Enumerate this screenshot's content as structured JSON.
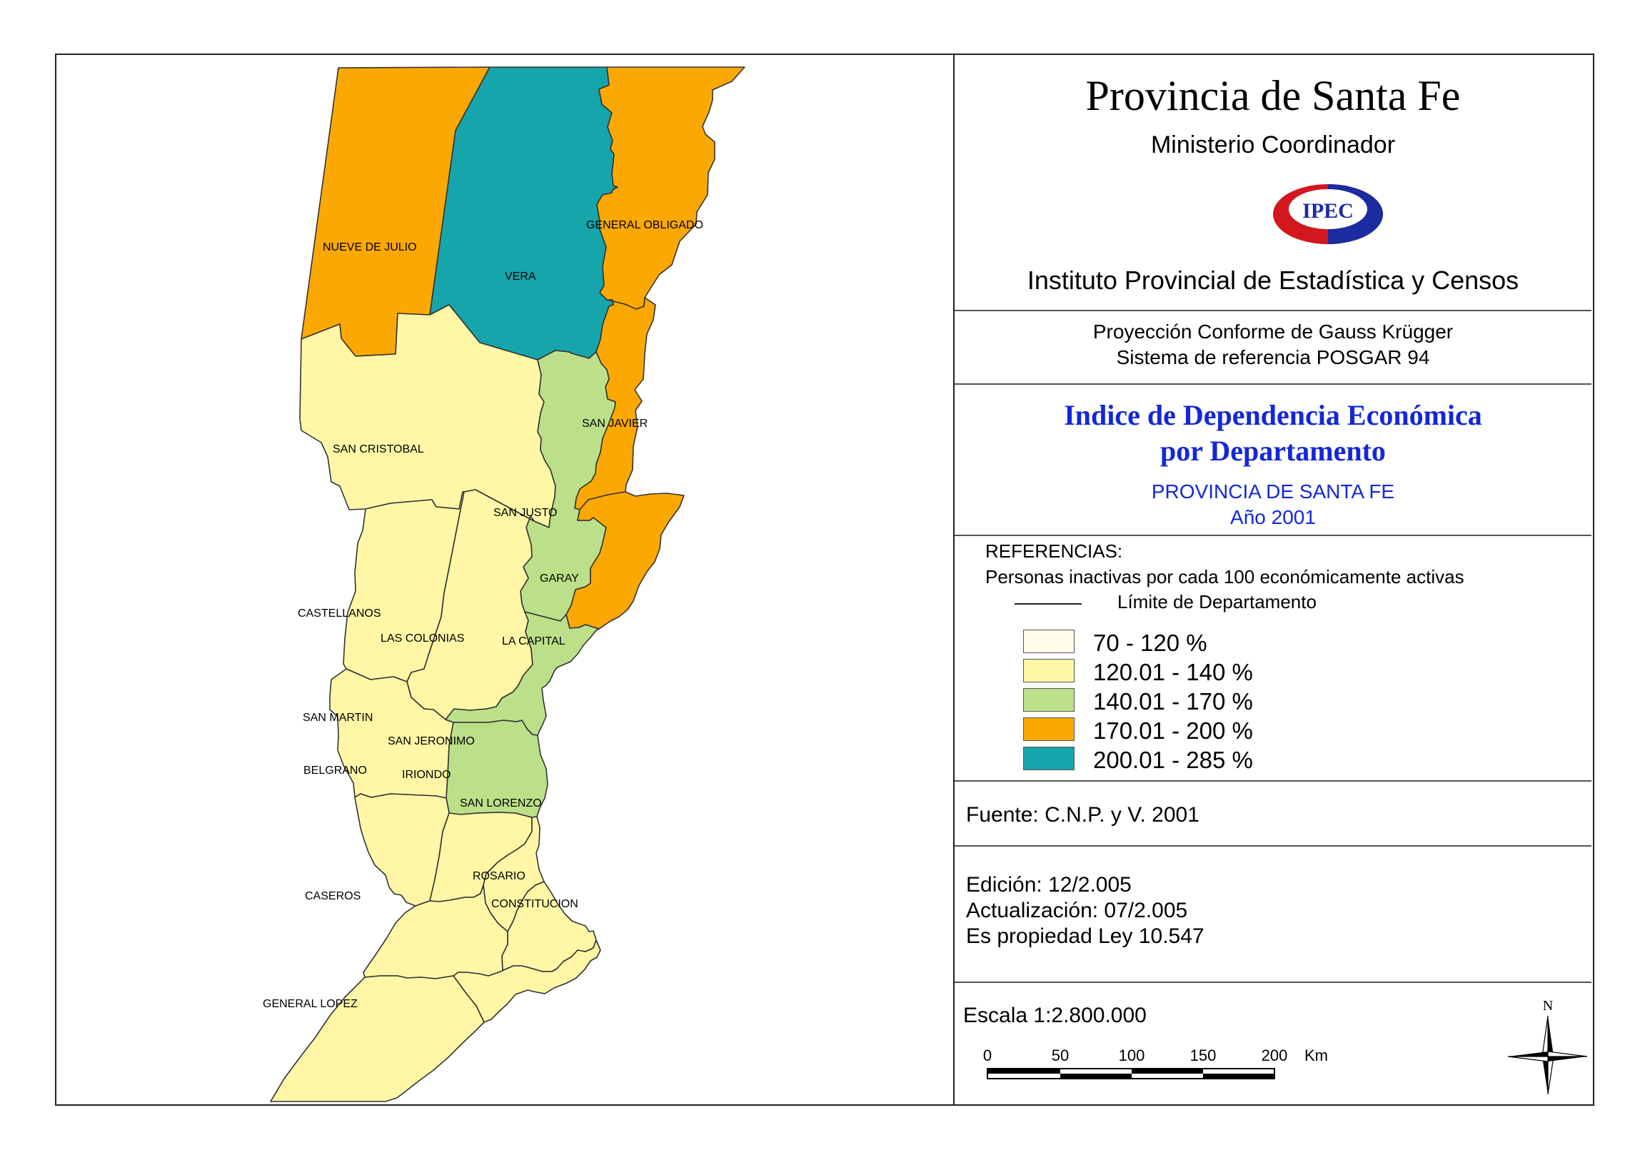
{
  "header": {
    "title": "Provincia de Santa Fe",
    "subtitle": "Ministerio Coordinador",
    "logo_text": "IPEC",
    "institute": "Instituto Provincial de Estadística y Censos"
  },
  "projection": {
    "line1": "Proyección Conforme de Gauss Krügger",
    "line2": "Sistema de referencia POSGAR 94"
  },
  "map_title": {
    "line1": "Indice de Dependencia Económica",
    "line2": "por Departamento",
    "line3": "PROVINCIA DE SANTA FE",
    "line4": "Año 2001"
  },
  "legend": {
    "heading": "REFERENCIAS:",
    "description": "Personas inactivas por cada 100 económicamente activas",
    "boundary_label": "Límite de Departamento",
    "classes": [
      {
        "label": "70 - 120 %",
        "color": "#fffde8"
      },
      {
        "label": "120.01 - 140 %",
        "color": "#fff7a6"
      },
      {
        "label": "140.01 - 170 %",
        "color": "#bce08a"
      },
      {
        "label": "170.01 - 200 %",
        "color": "#fba902"
      },
      {
        "label": "200.01 - 285 %",
        "color": "#16a5ab"
      }
    ]
  },
  "source": "Fuente:  C.N.P. y V. 2001",
  "edition": {
    "line1": "Edición:  12/2.005",
    "line2": "Actualización:  07/2.005",
    "line3": "Es propiedad Ley 10.547"
  },
  "scale": {
    "label": "Escala 1:2.800.000",
    "ticks": [
      "0",
      "50",
      "100",
      "150",
      "200"
    ],
    "unit": "Km"
  },
  "north": "N",
  "colors": {
    "class_120_140": "#fff7a6",
    "class_140_170": "#bce08a",
    "class_170_200": "#fba902",
    "class_200_285": "#16a5ab",
    "title_blue": "#1427d8",
    "logo_red": "#d3171f",
    "logo_blue": "#1b2ba0"
  },
  "departments": [
    {
      "name": "NUEVE DE JULIO",
      "class": "170.01 - 200 %"
    },
    {
      "name": "VERA",
      "class": "200.01 - 285 %"
    },
    {
      "name": "GENERAL OBLIGADO",
      "class": "170.01 - 200 %"
    },
    {
      "name": "SAN CRISTOBAL",
      "class": "120.01 - 140 %"
    },
    {
      "name": "SAN JAVIER",
      "class": "170.01 - 200 %"
    },
    {
      "name": "SAN JUSTO",
      "class": "140.01 - 170 %"
    },
    {
      "name": "GARAY",
      "class": "170.01 - 200 %"
    },
    {
      "name": "CASTELLANOS",
      "class": "120.01 - 140 %"
    },
    {
      "name": "LAS COLONIAS",
      "class": "120.01 - 140 %"
    },
    {
      "name": "LA CAPITAL",
      "class": "140.01 - 170 %"
    },
    {
      "name": "SAN MARTIN",
      "class": "120.01 - 140 %"
    },
    {
      "name": "SAN JERONIMO",
      "class": "140.01 - 170 %"
    },
    {
      "name": "BELGRANO",
      "class": "120.01 - 140 %"
    },
    {
      "name": "IRIONDO",
      "class": "120.01 - 140 %"
    },
    {
      "name": "SAN LORENZO",
      "class": "120.01 - 140 %"
    },
    {
      "name": "ROSARIO",
      "class": "120.01 - 140 %"
    },
    {
      "name": "CONSTITUCION",
      "class": "120.01 - 140 %"
    },
    {
      "name": "CASEROS",
      "class": "120.01 - 140 %"
    },
    {
      "name": "GENERAL LOPEZ",
      "class": "120.01 - 140 %"
    }
  ]
}
